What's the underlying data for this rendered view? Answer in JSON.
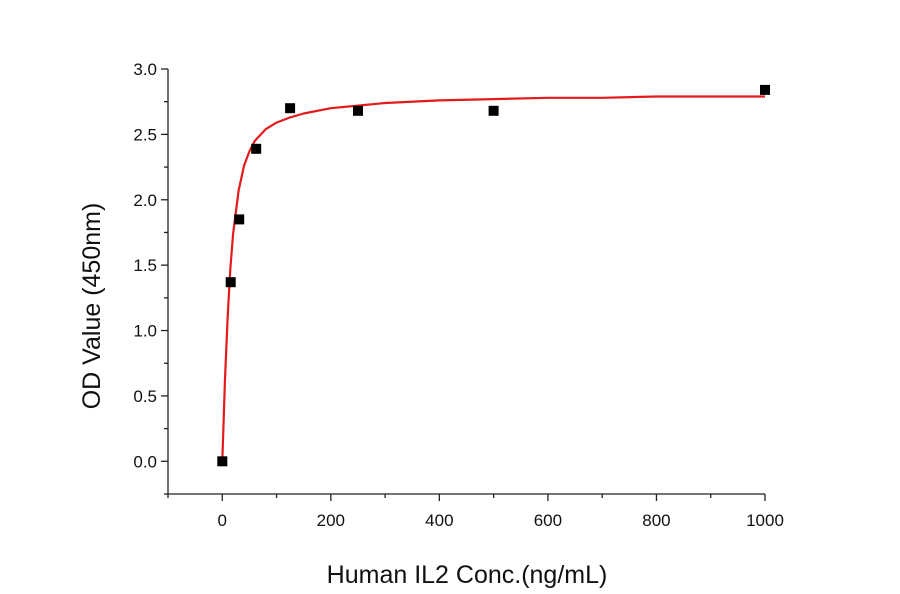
{
  "chart_data": {
    "type": "scatter",
    "xlabel": "Human IL2 Conc.(ng/mL)",
    "ylabel": "OD Value (450nm)",
    "xlim": [
      -100,
      1000
    ],
    "ylim": [
      -0.25,
      3.0
    ],
    "xticks": [
      0,
      200,
      400,
      600,
      800,
      1000
    ],
    "xtick_labels": [
      "0",
      "200",
      "400",
      "600",
      "800",
      "1000"
    ],
    "yticks": [
      0.0,
      0.5,
      1.0,
      1.5,
      2.0,
      2.5,
      3.0
    ],
    "ytick_labels": [
      "0.0",
      "0.5",
      "1.0",
      "1.5",
      "2.0",
      "2.5",
      "3.0"
    ],
    "grid": false,
    "series": [
      {
        "kind": "points",
        "marker": "square",
        "color": "#000000",
        "x": [
          0,
          15.6,
          31.2,
          62.5,
          125,
          250,
          500,
          1000
        ],
        "y": [
          0.0,
          1.37,
          1.85,
          2.39,
          2.7,
          2.68,
          2.68,
          2.84
        ]
      },
      {
        "kind": "fit-line",
        "color": "#e41a1c",
        "x": [
          0,
          5,
          10,
          15,
          20,
          30,
          40,
          50,
          60,
          80,
          100,
          125,
          150,
          200,
          250,
          300,
          400,
          500,
          600,
          700,
          800,
          900,
          1000
        ],
        "y": [
          0.0,
          0.63,
          1.11,
          1.48,
          1.74,
          2.07,
          2.26,
          2.37,
          2.45,
          2.54,
          2.59,
          2.63,
          2.66,
          2.7,
          2.72,
          2.74,
          2.76,
          2.77,
          2.78,
          2.78,
          2.79,
          2.79,
          2.79
        ]
      }
    ]
  }
}
